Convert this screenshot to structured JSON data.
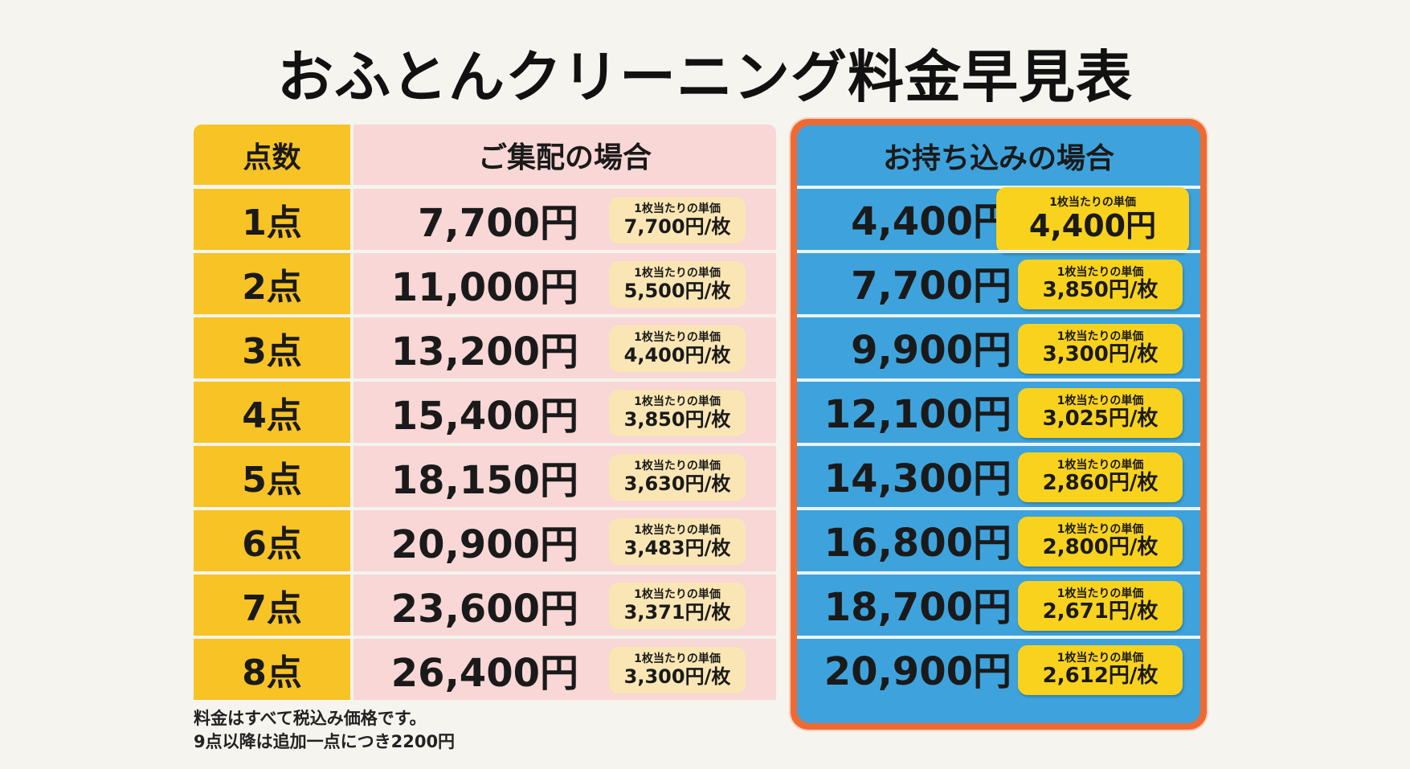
{
  "title": "おふとんクリーニング料金早見表",
  "headers": {
    "points": "点数",
    "delivery": "ご集配の場合",
    "pickup": "お持ち込みの場合"
  },
  "unit_caption": "1枚当たりの単価",
  "rows": [
    {
      "points": "1点",
      "delivery_price": "7,700円",
      "delivery_unit": "7,700円/枚",
      "pickup_price": "4,400円",
      "pickup_unit": "4,400円"
    },
    {
      "points": "2点",
      "delivery_price": "11,000円",
      "delivery_unit": "5,500円/枚",
      "pickup_price": "7,700円",
      "pickup_unit": "3,850円/枚"
    },
    {
      "points": "3点",
      "delivery_price": "13,200円",
      "delivery_unit": "4,400円/枚",
      "pickup_price": "9,900円",
      "pickup_unit": "3,300円/枚"
    },
    {
      "points": "4点",
      "delivery_price": "15,400円",
      "delivery_unit": "3,850円/枚",
      "pickup_price": "12,100円",
      "pickup_unit": "3,025円/枚"
    },
    {
      "points": "5点",
      "delivery_price": "18,150円",
      "delivery_unit": "3,630円/枚",
      "pickup_price": "14,300円",
      "pickup_unit": "2,860円/枚"
    },
    {
      "points": "6点",
      "delivery_price": "20,900円",
      "delivery_unit": "3,483円/枚",
      "pickup_price": "16,800円",
      "pickup_unit": "2,800円/枚"
    },
    {
      "points": "7点",
      "delivery_price": "23,600円",
      "delivery_unit": "3,371円/枚",
      "pickup_price": "18,700円",
      "pickup_unit": "2,671円/枚"
    },
    {
      "points": "8点",
      "delivery_price": "26,400円",
      "delivery_unit": "3,300円/枚",
      "pickup_price": "20,900円",
      "pickup_unit": "2,612円/枚"
    }
  ],
  "notes": [
    "料金はすべて税込み価格です。",
    "9点以降は追加一点につき2200円"
  ],
  "colors": {
    "points_bg": "#f7c325",
    "delivery_bg": "#f8d7d6",
    "pickup_bg": "#3ea3dc",
    "pickup_border": "#ef6a32",
    "pickup_badge": "#f9d21e"
  }
}
